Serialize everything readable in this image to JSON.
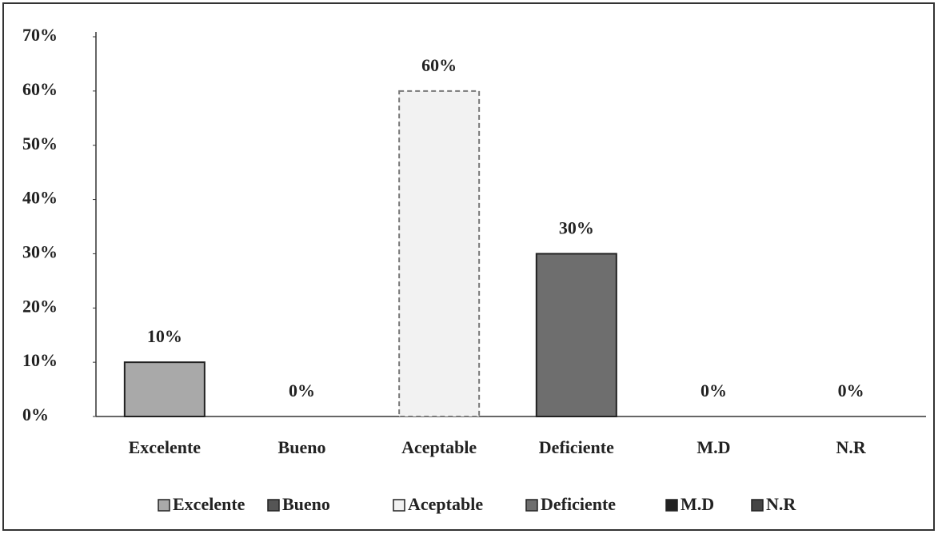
{
  "chart_data": {
    "type": "bar",
    "categories": [
      "Excelente",
      "Bueno",
      "Aceptable",
      "Deficiente",
      "M.D",
      "N.R"
    ],
    "values": [
      10,
      0,
      60,
      30,
      0,
      0
    ],
    "value_labels": [
      "10%",
      "0%",
      "60%",
      "30%",
      "0%",
      "0%"
    ],
    "colors": [
      "#a9a9a9",
      "#555555",
      "#f2f2f2",
      "#6e6e6e",
      "#222222",
      "#444444"
    ],
    "ylim": [
      0,
      70
    ],
    "yticks": [
      {
        "value": 0,
        "label": "0%"
      },
      {
        "value": 10,
        "label": "10%"
      },
      {
        "value": 20,
        "label": "20%"
      },
      {
        "value": 30,
        "label": "30%"
      },
      {
        "value": 40,
        "label": "40%"
      },
      {
        "value": 50,
        "label": "50%"
      },
      {
        "value": 60,
        "label": "60%"
      },
      {
        "value": 70,
        "label": "70%"
      }
    ],
    "grid": false,
    "legend": "bottom"
  }
}
